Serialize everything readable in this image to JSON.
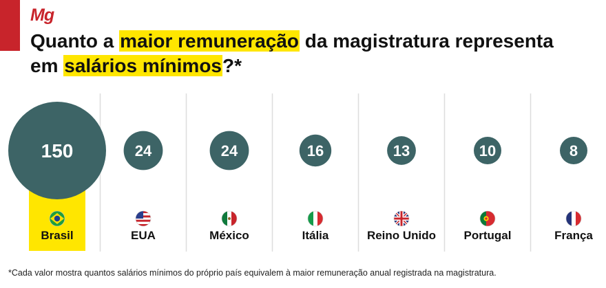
{
  "brand": {
    "logo_text": "Mg",
    "accent_color": "#c8242b"
  },
  "header": {
    "title_part1": "Quanto a ",
    "title_hl1": "maior remuneração",
    "title_part2": " da magistratura representa em ",
    "title_hl2": "salários mínimos",
    "title_part3": "?*",
    "highlight_color": "#ffe600"
  },
  "chart_data": {
    "type": "bubble",
    "title": "Quanto a maior remuneração da magistratura representa em salários mínimos?*",
    "categories": [
      "Brasil",
      "EUA",
      "México",
      "Itália",
      "Reino Unido",
      "Portugal",
      "França"
    ],
    "values": [
      150,
      24,
      24,
      16,
      13,
      10,
      8
    ],
    "flags": [
      "brazil-flag-icon",
      "usa-flag-icon",
      "mexico-flag-icon",
      "italy-flag-icon",
      "uk-flag-icon",
      "portugal-flag-icon",
      "france-flag-icon"
    ],
    "highlighted_category": "Brasil",
    "bubble_color": "#3d6466",
    "highlight_color": "#ffe600",
    "divider_color": "#dddddd"
  },
  "footnote": "*Cada valor mostra quantos salários mínimos do próprio país equivalem à maior remuneração anual registrada na magistratura."
}
